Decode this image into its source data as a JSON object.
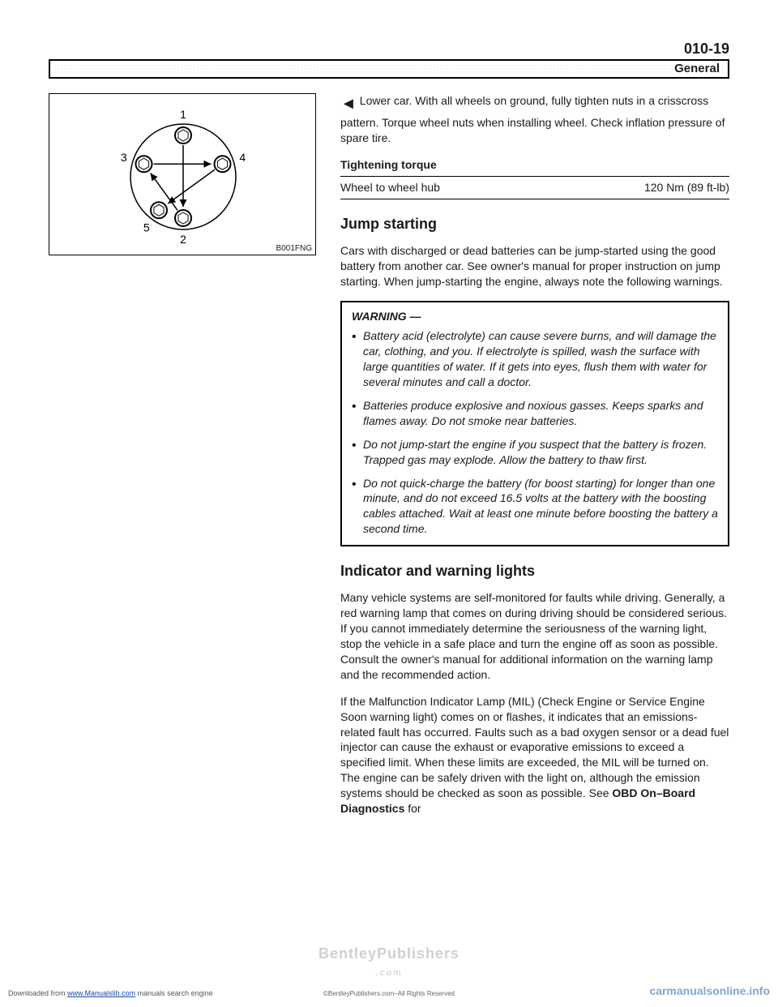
{
  "page_number": "010-19",
  "header_label": "General",
  "figure": {
    "caption": "B001FNG",
    "bolts": [
      {
        "id": 1,
        "angle_deg": -90
      },
      {
        "id": 2,
        "angle_deg": 90
      },
      {
        "id": 3,
        "angle_deg": 198
      },
      {
        "id": 4,
        "angle_deg": -18
      },
      {
        "id": 5,
        "angle_deg": 126
      }
    ],
    "arrows": [
      {
        "from": 1,
        "to": 2
      },
      {
        "from": 2,
        "to": 3
      },
      {
        "from": 3,
        "to": 4
      },
      {
        "from": 4,
        "to": 5
      }
    ],
    "circle_radius": 65,
    "bolt_radius": 10,
    "stroke": "#000000",
    "fill": "#ffffff"
  },
  "lower_car_para": "Lower car. With all wheels on ground, fully tighten nuts in a crisscross pattern. Torque wheel nuts when installing wheel. Check inflation pressure of spare tire.",
  "torque_label": "Tightening torque",
  "torque_item": "Wheel to wheel hub",
  "torque_value": "120 Nm (89 ft-lb)",
  "jump_heading": "Jump starting",
  "jump_para": "Cars with discharged or dead batteries can be jump-started using the good battery from another car. See owner's manual for proper instruction on jump starting. When jump-starting the engine, always note the following warnings.",
  "warning_title": "WARNING —",
  "warnings": [
    "Battery acid (electrolyte) can cause severe burns, and will damage the car, clothing, and you. If electrolyte is spilled, wash the surface with large quantities of water. If it gets into eyes, flush them with water for several minutes and call a doctor.",
    "Batteries produce explosive and noxious gasses. Keeps sparks and flames away. Do not smoke near batteries.",
    "Do not jump-start the engine if you suspect that the battery is frozen. Trapped gas may explode. Allow the battery to thaw first.",
    "Do not quick-charge the battery (for boost starting) for longer than one minute, and do not exceed 16.5 volts at the battery with the boosting cables attached. Wait at least one minute before boosting the battery a second time."
  ],
  "indicator_heading": "Indicator and warning lights",
  "indicator_para1": "Many vehicle systems are self-monitored for faults while driving. Generally, a red warning lamp that comes on during driving should be considered serious. If you cannot immediately determine the seriousness of the warning light, stop the vehicle in a safe place and turn the engine off as soon as possible. Consult the owner's manual for additional information on the warning lamp and the recommended action.",
  "indicator_para2_pre": "If the Malfunction Indicator Lamp (MIL) (Check Engine or Service Engine Soon warning light) comes on or flashes, it indicates that an emissions-related fault has occurred. Faults such as a bad oxygen sensor or a dead fuel injector can cause the exhaust or evaporative emissions to exceed a specified limit. When these limits are exceeded, the MIL will be turned on. The engine can be safely driven with the light on, although the emission systems should be checked as soon as possible. See ",
  "indicator_para2_bold": "OBD On–Board Diagnostics",
  "indicator_para2_post": " for",
  "watermark_main": "BentleyPublishers",
  "watermark_sub": ".com",
  "footer_left_pre": "Downloaded from ",
  "footer_left_link": "www.Manualslib.com",
  "footer_left_post": " manuals search engine",
  "footer_center": "©BentleyPublishers.com–All Rights Reserved",
  "footer_right": "carmanualsonline.info"
}
